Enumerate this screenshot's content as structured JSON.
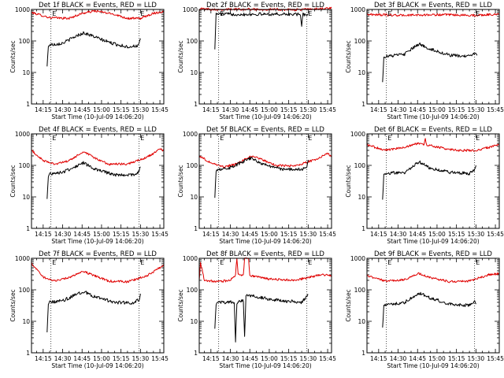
{
  "colors": {
    "events": "#000000",
    "lld": "#e00000",
    "background": "#ffffff"
  },
  "chart_data": [
    {
      "type": "line",
      "title": "Det 1f BLACK = Events, RED = LLD",
      "xlabel": "Start Time (10-Jul-09 14:06:20)",
      "ylabel": "Counts/sec",
      "yscale": "log",
      "ylim": [
        1,
        1000
      ],
      "yticks": [
        "1",
        "10",
        "100",
        "1000"
      ],
      "xlim": [
        "14:06",
        "15:48"
      ],
      "xticks": [
        "14:15",
        "14:30",
        "14:45",
        "15:00",
        "15:15",
        "15:30",
        "15:45"
      ],
      "markers": [
        "14:21",
        "15:29"
      ],
      "marker_labels": [
        "E",
        "E"
      ],
      "grid": false,
      "series": [
        {
          "color": "red",
          "x": [
            "14:06",
            "14:20",
            "14:35",
            "14:45",
            "14:55",
            "15:10",
            "15:20",
            "15:30",
            "15:40",
            "15:48"
          ],
          "y": [
            800,
            550,
            520,
            750,
            900,
            700,
            520,
            520,
            760,
            850
          ]
        },
        {
          "color": "black",
          "x": [
            "14:18",
            "14:19",
            "14:20",
            "14:30",
            "14:40",
            "14:46",
            "14:52",
            "15:00",
            "15:10",
            "15:20",
            "15:28",
            "15:29",
            "15:30"
          ],
          "y": [
            15,
            70,
            75,
            85,
            140,
            180,
            150,
            110,
            80,
            65,
            70,
            80,
            120
          ]
        }
      ]
    },
    {
      "type": "line",
      "title": "Det 2f BLACK = Events, RED = LLD",
      "xlabel": "Start Time (10-Jul-09 14:06:20)",
      "ylabel": "Counts/sec",
      "yscale": "log",
      "ylim": [
        1,
        1000
      ],
      "yticks": [
        "1",
        "10",
        "100",
        "1000"
      ],
      "xlim": [
        "14:06",
        "15:48"
      ],
      "xticks": [
        "14:15",
        "14:30",
        "14:45",
        "15:00",
        "15:15",
        "15:30",
        "15:45"
      ],
      "markers": [
        "14:21",
        "15:29"
      ],
      "marker_labels": [
        "E",
        "E"
      ],
      "grid": false,
      "series": [
        {
          "color": "red",
          "x": [
            "14:06",
            "14:20",
            "14:40",
            "15:00",
            "15:20",
            "15:40",
            "15:48"
          ],
          "y": [
            1050,
            1000,
            1020,
            1000,
            980,
            1050,
            1100
          ]
        },
        {
          "color": "black",
          "x": [
            "14:18",
            "14:19",
            "14:20",
            "14:40",
            "15:00",
            "15:20",
            "15:24",
            "15:25",
            "15:26",
            "15:30"
          ],
          "y": [
            60,
            700,
            720,
            700,
            710,
            700,
            690,
            300,
            690,
            700
          ]
        }
      ]
    },
    {
      "type": "line",
      "title": "Det 3f BLACK = Events, RED = LLD",
      "xlabel": "Start Time (10-Jul-09 14:06:20)",
      "ylabel": "Counts/sec",
      "yscale": "log",
      "ylim": [
        1,
        1000
      ],
      "yticks": [
        "1",
        "10",
        "100",
        "1000"
      ],
      "xlim": [
        "14:06",
        "15:48"
      ],
      "xticks": [
        "14:15",
        "14:30",
        "14:45",
        "15:00",
        "15:15",
        "15:30",
        "15:45"
      ],
      "markers": [
        "14:21",
        "15:29"
      ],
      "marker_labels": [
        "E",
        "E"
      ],
      "grid": false,
      "series": [
        {
          "color": "red",
          "x": [
            "14:06",
            "14:30",
            "15:00",
            "15:30",
            "15:48"
          ],
          "y": [
            700,
            650,
            680,
            650,
            720
          ]
        },
        {
          "color": "black",
          "x": [
            "14:18",
            "14:19",
            "14:20",
            "14:35",
            "14:46",
            "14:55",
            "15:10",
            "15:25",
            "15:30",
            "15:31"
          ],
          "y": [
            5,
            30,
            32,
            38,
            80,
            55,
            35,
            32,
            45,
            35
          ]
        }
      ]
    },
    {
      "type": "line",
      "title": "Det 4f BLACK = Events, RED = LLD",
      "xlabel": "Start Time (10-Jul-09 14:06:20)",
      "ylabel": "Counts/sec",
      "yscale": "log",
      "ylim": [
        1,
        1000
      ],
      "yticks": [
        "1",
        "10",
        "100",
        "1000"
      ],
      "xlim": [
        "14:06",
        "15:48"
      ],
      "xticks": [
        "14:15",
        "14:30",
        "14:45",
        "15:00",
        "15:15",
        "15:30",
        "15:45"
      ],
      "markers": [
        "14:21",
        "15:29"
      ],
      "marker_labels": [
        "E",
        "E"
      ],
      "grid": false,
      "series": [
        {
          "color": "red",
          "x": [
            "14:06",
            "14:15",
            "14:25",
            "14:35",
            "14:46",
            "14:55",
            "15:05",
            "15:20",
            "15:35",
            "15:45",
            "15:48"
          ],
          "y": [
            300,
            140,
            110,
            140,
            270,
            170,
            110,
            110,
            180,
            320,
            300
          ]
        },
        {
          "color": "black",
          "x": [
            "14:18",
            "14:19",
            "14:20",
            "14:30",
            "14:46",
            "14:55",
            "15:10",
            "15:25",
            "15:29",
            "15:30"
          ],
          "y": [
            8,
            45,
            55,
            60,
            120,
            75,
            50,
            50,
            65,
            90
          ]
        }
      ]
    },
    {
      "type": "line",
      "title": "Det 5f BLACK = Events, RED = LLD",
      "xlabel": "Start Time (10-Jul-09 14:06:20)",
      "ylabel": "Counts/sec",
      "yscale": "log",
      "ylim": [
        1,
        1000
      ],
      "yticks": [
        "1",
        "10",
        "100",
        "1000"
      ],
      "xlim": [
        "14:06",
        "15:48"
      ],
      "xticks": [
        "14:15",
        "14:30",
        "14:45",
        "15:00",
        "15:15",
        "15:30",
        "15:45"
      ],
      "markers": [
        "14:21",
        "15:29"
      ],
      "marker_labels": [
        "E",
        "E"
      ],
      "grid": false,
      "series": [
        {
          "color": "red",
          "x": [
            "14:06",
            "14:15",
            "14:25",
            "14:35",
            "14:46",
            "14:55",
            "15:05",
            "15:20",
            "15:35",
            "15:45",
            "15:48"
          ],
          "y": [
            200,
            120,
            90,
            110,
            200,
            150,
            100,
            95,
            150,
            240,
            200
          ]
        },
        {
          "color": "black",
          "x": [
            "14:18",
            "14:19",
            "14:20",
            "14:30",
            "14:46",
            "14:55",
            "15:10",
            "15:25",
            "15:29",
            "15:30"
          ],
          "y": [
            10,
            70,
            75,
            85,
            170,
            110,
            75,
            75,
            85,
            150
          ]
        }
      ]
    },
    {
      "type": "line",
      "title": "Det 6f BLACK = Events, RED = LLD",
      "xlabel": "Start Time (10-Jul-09 14:06:20)",
      "ylabel": "Counts/sec",
      "yscale": "log",
      "ylim": [
        1,
        1000
      ],
      "yticks": [
        "1",
        "10",
        "100",
        "1000"
      ],
      "xlim": [
        "14:06",
        "15:48"
      ],
      "xticks": [
        "14:15",
        "14:30",
        "14:45",
        "15:00",
        "15:15",
        "15:30",
        "15:45"
      ],
      "markers": [
        "14:21",
        "15:29"
      ],
      "marker_labels": [
        "E",
        "E"
      ],
      "grid": false,
      "series": [
        {
          "color": "red",
          "x": [
            "14:06",
            "14:20",
            "14:35",
            "14:45",
            "14:50",
            "14:51",
            "14:52",
            "15:00",
            "15:15",
            "15:30",
            "15:48"
          ],
          "y": [
            450,
            300,
            380,
            500,
            450,
            700,
            450,
            380,
            300,
            300,
            450
          ]
        },
        {
          "color": "black",
          "x": [
            "14:18",
            "14:19",
            "14:20",
            "14:35",
            "14:46",
            "14:55",
            "15:10",
            "15:25",
            "15:29",
            "15:30"
          ],
          "y": [
            8,
            50,
            55,
            60,
            130,
            80,
            60,
            55,
            70,
            100
          ]
        }
      ]
    },
    {
      "type": "line",
      "title": "Det 7f BLACK = Events, RED = LLD",
      "xlabel": "Start Time (10-Jul-09 14:06:20)",
      "ylabel": "Counts/sec",
      "yscale": "log",
      "ylim": [
        1,
        1000
      ],
      "yticks": [
        "1",
        "10",
        "100",
        "1000"
      ],
      "xlim": [
        "14:06",
        "15:48"
      ],
      "xticks": [
        "14:15",
        "14:30",
        "14:45",
        "15:00",
        "15:15",
        "15:30",
        "15:45"
      ],
      "markers": [
        "14:21",
        "15:29"
      ],
      "marker_labels": [
        "E",
        "E"
      ],
      "grid": false,
      "series": [
        {
          "color": "red",
          "x": [
            "14:06",
            "14:15",
            "14:25",
            "14:35",
            "14:46",
            "14:55",
            "15:05",
            "15:20",
            "15:35",
            "15:45",
            "15:48"
          ],
          "y": [
            700,
            250,
            190,
            250,
            380,
            280,
            190,
            180,
            280,
            500,
            600
          ]
        },
        {
          "color": "black",
          "x": [
            "14:18",
            "14:19",
            "14:20",
            "14:30",
            "14:46",
            "14:55",
            "15:10",
            "15:25",
            "15:29",
            "15:30"
          ],
          "y": [
            4,
            35,
            40,
            45,
            90,
            60,
            40,
            38,
            50,
            75
          ]
        }
      ]
    },
    {
      "type": "line",
      "title": "Det 8f BLACK = Events, RED = LLD",
      "xlabel": "Start Time (10-Jul-09 14:06:20)",
      "ylabel": "Counts/sec",
      "yscale": "log",
      "ylim": [
        1,
        1000
      ],
      "yticks": [
        "1",
        "10",
        "100",
        "1000"
      ],
      "xlim": [
        "14:06",
        "15:48"
      ],
      "xticks": [
        "14:15",
        "14:30",
        "14:45",
        "15:00",
        "15:15",
        "15:30",
        "15:45"
      ],
      "markers": [
        "14:21",
        "15:29"
      ],
      "marker_labels": [
        "E",
        "E"
      ],
      "grid": false,
      "series": [
        {
          "color": "red",
          "x": [
            "14:06",
            "14:07",
            "14:10",
            "14:20",
            "14:30",
            "14:34",
            "14:35",
            "14:36",
            "14:40",
            "14:41",
            "14:44",
            "14:45",
            "14:46",
            "15:00",
            "15:20",
            "15:40",
            "15:48"
          ],
          "y": [
            200,
            700,
            200,
            180,
            200,
            300,
            1000,
            300,
            300,
            1000,
            1000,
            300,
            280,
            220,
            200,
            300,
            280
          ]
        },
        {
          "color": "black",
          "x": [
            "14:18",
            "14:19",
            "14:20",
            "14:30",
            "14:33",
            "14:34",
            "14:35",
            "14:40",
            "14:41",
            "14:42",
            "14:46",
            "15:00",
            "15:10",
            "15:25",
            "15:30"
          ],
          "y": [
            6,
            35,
            40,
            40,
            40,
            2,
            40,
            45,
            3,
            70,
            65,
            50,
            45,
            40,
            70
          ]
        }
      ]
    },
    {
      "type": "line",
      "title": "Det 9f BLACK = Events, RED = LLD",
      "xlabel": "Start Time (10-Jul-09 14:06:20)",
      "ylabel": "Counts/sec",
      "yscale": "log",
      "ylim": [
        1,
        1000
      ],
      "yticks": [
        "1",
        "10",
        "100",
        "1000"
      ],
      "xlim": [
        "14:06",
        "15:48"
      ],
      "xticks": [
        "14:15",
        "14:30",
        "14:45",
        "15:00",
        "15:15",
        "15:30",
        "15:45"
      ],
      "markers": [
        "14:21",
        "15:29"
      ],
      "marker_labels": [
        "E",
        "E"
      ],
      "grid": false,
      "series": [
        {
          "color": "red",
          "x": [
            "14:06",
            "14:20",
            "14:35",
            "14:46",
            "14:55",
            "15:10",
            "15:25",
            "15:40",
            "15:48"
          ],
          "y": [
            280,
            190,
            210,
            330,
            240,
            180,
            190,
            300,
            330
          ]
        },
        {
          "color": "black",
          "x": [
            "14:18",
            "14:19",
            "14:20",
            "14:35",
            "14:46",
            "14:55",
            "15:10",
            "15:25",
            "15:29",
            "15:30"
          ],
          "y": [
            6,
            30,
            32,
            40,
            80,
            55,
            35,
            32,
            45,
            35
          ]
        }
      ]
    }
  ]
}
